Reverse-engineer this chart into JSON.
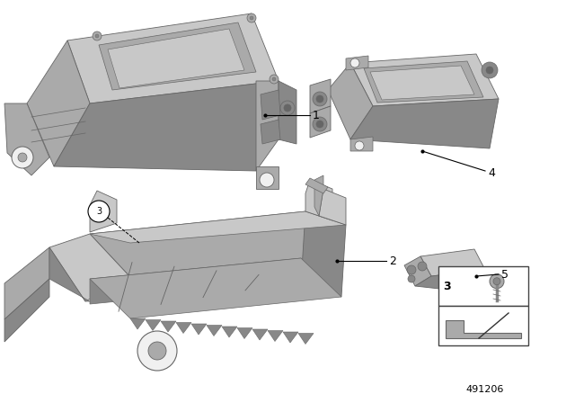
{
  "background_color": "#ffffff",
  "figure_number": "491206",
  "fig_width": 6.4,
  "fig_height": 4.48,
  "dpi": 100,
  "c_light": "#c8c8c8",
  "c_mid": "#aaaaaa",
  "c_dark": "#888888",
  "c_edge": "#666666",
  "c_shadow": "#999999",
  "c_white": "#f0f0f0"
}
